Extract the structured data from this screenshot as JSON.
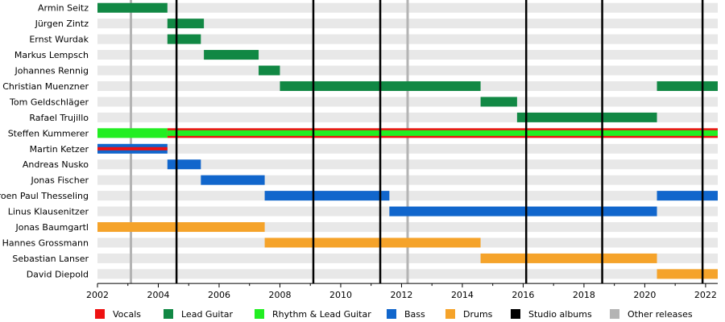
{
  "chart_data": {
    "type": "timeline",
    "title": "",
    "xlim": [
      2002,
      2022.4
    ],
    "x_ticks": [
      "2002",
      "2004",
      "2006",
      "2008",
      "2010",
      "2012",
      "2014",
      "2016",
      "2018",
      "2020",
      "2022"
    ],
    "members": [
      {
        "name": "Armin Seitz",
        "spans": [
          {
            "role": "Lead Guitar",
            "start": 2002.0,
            "end": 2004.3
          }
        ]
      },
      {
        "name": "Jürgen Zintz",
        "spans": [
          {
            "role": "Lead Guitar",
            "start": 2004.3,
            "end": 2005.5
          }
        ]
      },
      {
        "name": "Ernst Wurdak",
        "spans": [
          {
            "role": "Lead Guitar",
            "start": 2004.3,
            "end": 2005.4
          }
        ]
      },
      {
        "name": "Markus Lempsch",
        "spans": [
          {
            "role": "Lead Guitar",
            "start": 2005.5,
            "end": 2007.3
          }
        ]
      },
      {
        "name": "Johannes Rennig",
        "spans": [
          {
            "role": "Lead Guitar",
            "start": 2007.3,
            "end": 2008.0
          }
        ]
      },
      {
        "name": "Christian Muenzner",
        "spans": [
          {
            "role": "Lead Guitar",
            "start": 2008.0,
            "end": 2014.6
          },
          {
            "role": "Lead Guitar",
            "start": 2020.4,
            "end": 2022.4
          }
        ]
      },
      {
        "name": "Tom Geldschläger",
        "spans": [
          {
            "role": "Lead Guitar",
            "start": 2014.6,
            "end": 2015.8
          }
        ]
      },
      {
        "name": "Rafael Trujillo",
        "spans": [
          {
            "role": "Lead Guitar",
            "start": 2015.8,
            "end": 2020.4
          }
        ]
      },
      {
        "name": "Steffen Kummerer",
        "spans": [
          {
            "role": "Rhythm & Lead Guitar",
            "start": 2002.0,
            "end": 2004.3
          },
          {
            "role": "Rhythm & Lead Guitar+Vocals",
            "start": 2004.3,
            "end": 2022.4
          }
        ]
      },
      {
        "name": "Martin Ketzer",
        "spans": [
          {
            "role": "Bass+Vocals",
            "start": 2002.0,
            "end": 2004.3
          }
        ]
      },
      {
        "name": "Andreas Nusko",
        "spans": [
          {
            "role": "Bass",
            "start": 2004.3,
            "end": 2005.4
          }
        ]
      },
      {
        "name": "Jonas Fischer",
        "spans": [
          {
            "role": "Bass",
            "start": 2005.4,
            "end": 2007.5
          }
        ]
      },
      {
        "name": "Jeroen Paul Thesseling",
        "spans": [
          {
            "role": "Bass",
            "start": 2007.5,
            "end": 2011.6
          },
          {
            "role": "Bass",
            "start": 2020.4,
            "end": 2022.4
          }
        ]
      },
      {
        "name": "Linus Klausenitzer",
        "spans": [
          {
            "role": "Bass",
            "start": 2011.6,
            "end": 2020.4
          }
        ]
      },
      {
        "name": "Jonas Baumgartl",
        "spans": [
          {
            "role": "Drums",
            "start": 2002.0,
            "end": 2007.5
          }
        ]
      },
      {
        "name": "Hannes Grossmann",
        "spans": [
          {
            "role": "Drums",
            "start": 2007.5,
            "end": 2014.6
          }
        ]
      },
      {
        "name": "Sebastian Lanser",
        "spans": [
          {
            "role": "Drums",
            "start": 2014.6,
            "end": 2020.4
          }
        ]
      },
      {
        "name": "David Diepold",
        "spans": [
          {
            "role": "Drums",
            "start": 2020.4,
            "end": 2022.4
          }
        ]
      }
    ],
    "studio_albums": [
      2004.6,
      2009.1,
      2011.3,
      2016.1,
      2018.6,
      2021.9
    ],
    "other_releases": [
      2003.1,
      2012.2
    ],
    "legend": [
      {
        "label": "Vocals",
        "color": "#ee1111"
      },
      {
        "label": "Lead Guitar",
        "color": "#118844"
      },
      {
        "label": "Rhythm & Lead Guitar",
        "color": "#22ee22"
      },
      {
        "label": "Bass",
        "color": "#1166cc"
      },
      {
        "label": "Drums",
        "color": "#f5a32a"
      },
      {
        "label": "Studio albums",
        "color": "#000000"
      },
      {
        "label": "Other releases",
        "color": "#b4b4b4"
      }
    ]
  }
}
